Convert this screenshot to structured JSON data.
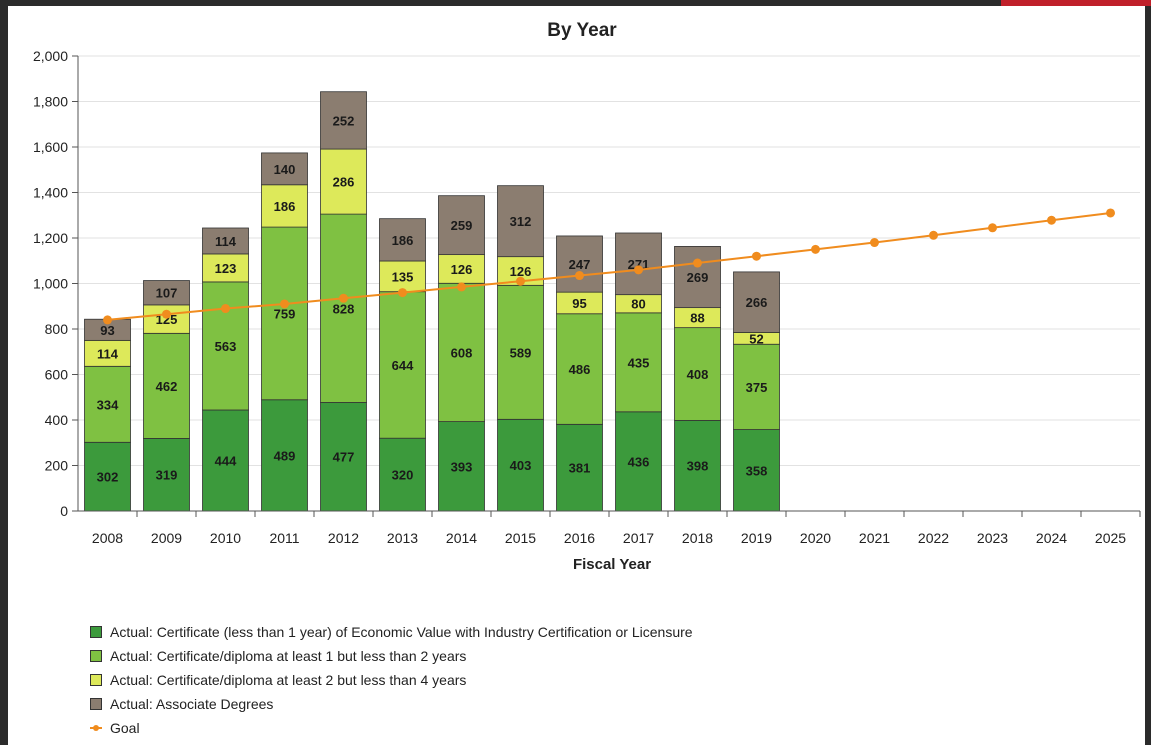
{
  "chart_data": {
    "type": "bar",
    "stacked": true,
    "title": "By Year",
    "xlabel": "Fiscal Year",
    "ylabel": "",
    "ylim": [
      0,
      2000
    ],
    "yticks": [
      "0",
      "200",
      "400",
      "600",
      "800",
      "1,000",
      "1,200",
      "1,400",
      "1,600",
      "1,800",
      "2,000"
    ],
    "grid": true,
    "legend_position": "bottom-left",
    "categories": [
      "2008",
      "2009",
      "2010",
      "2011",
      "2012",
      "2013",
      "2014",
      "2015",
      "2016",
      "2017",
      "2018",
      "2019",
      "2020",
      "2021",
      "2022",
      "2023",
      "2024",
      "2025"
    ],
    "series": [
      {
        "name": "Actual: Certificate (less than 1 year) of Economic Value with Industry Certification or Licensure",
        "color": "#3c9a3c",
        "values": [
          302,
          319,
          444,
          489,
          477,
          320,
          393,
          403,
          381,
          436,
          398,
          358,
          null,
          null,
          null,
          null,
          null,
          null
        ]
      },
      {
        "name": "Actual: Certificate/diploma at least 1 but less than 2 years",
        "color": "#7fc142",
        "values": [
          334,
          462,
          563,
          759,
          828,
          644,
          608,
          589,
          486,
          435,
          408,
          375,
          null,
          null,
          null,
          null,
          null,
          null
        ]
      },
      {
        "name": "Actual: Certificate/diploma at least 2 but less than 4 years",
        "color": "#dde95a",
        "values": [
          114,
          125,
          123,
          186,
          286,
          135,
          126,
          126,
          95,
          80,
          88,
          52,
          null,
          null,
          null,
          null,
          null,
          null
        ]
      },
      {
        "name": "Actual: Associate Degrees",
        "color": "#8b7d70",
        "values": [
          93,
          107,
          114,
          140,
          252,
          186,
          259,
          312,
          247,
          271,
          269,
          266,
          null,
          null,
          null,
          null,
          null,
          null
        ]
      }
    ],
    "goal": {
      "name": "Goal",
      "color": "#f08c1e",
      "values": [
        840,
        865,
        890,
        910,
        935,
        960,
        985,
        1010,
        1035,
        1060,
        1090,
        1120,
        1150,
        1180,
        1212,
        1245,
        1278,
        1310
      ]
    }
  }
}
